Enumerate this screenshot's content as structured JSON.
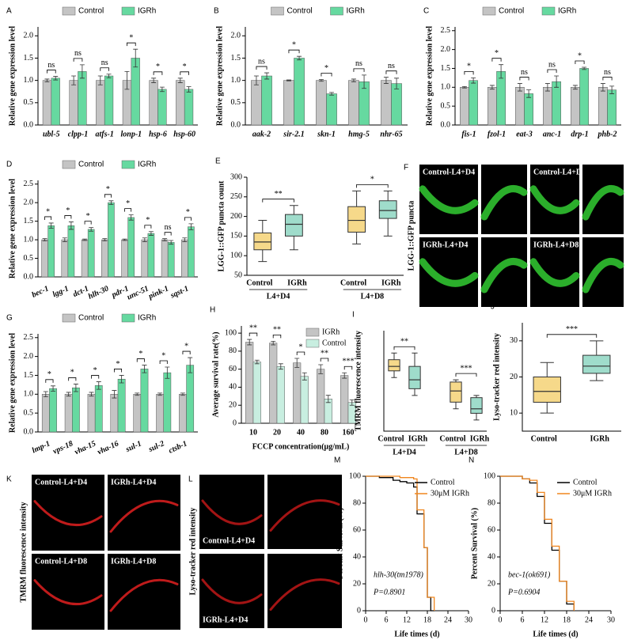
{
  "chart_data": [
    {
      "label": "A",
      "type": "bar",
      "ylabel": "Relative gene expression level",
      "legend": "top",
      "categories": [
        "ubl-5",
        "clpp-1",
        "atfs-1",
        "lonp-1",
        "hsp-6",
        "hsp-60"
      ],
      "series": [
        {
          "name": "Control",
          "color": "#c4c4c4",
          "values": [
            1,
            1,
            1,
            1,
            1,
            1
          ],
          "errors": [
            0.03,
            0.1,
            0.1,
            0.2,
            0.05,
            0.05
          ]
        },
        {
          "name": "IGRh",
          "color": "#66d9a0",
          "values": [
            1.05,
            1.2,
            1.1,
            1.5,
            0.8,
            0.8
          ],
          "errors": [
            0.04,
            0.15,
            0.04,
            0.2,
            0.05,
            0.06
          ]
        }
      ],
      "significance": [
        "ns",
        "ns",
        "ns",
        "*",
        "*",
        "*"
      ],
      "ylim": [
        0,
        2.2
      ],
      "yticks": [
        {
          "value": 0,
          "label": "0.0"
        },
        0.5,
        {
          "value": 1,
          "label": "1.0"
        },
        1.5,
        {
          "value": 2,
          "label": "2.0"
        }
      ]
    },
    {
      "label": "B",
      "type": "bar",
      "ylabel": "Relative gene expression level",
      "legend": "top",
      "categories": [
        "aak-2",
        "sir-2.1",
        "skn-1",
        "hmg-5",
        "nhr-65"
      ],
      "series": [
        {
          "name": "Control",
          "color": "#c4c4c4",
          "values": [
            1,
            1,
            1,
            1,
            1
          ],
          "errors": [
            0.1,
            0.01,
            0.02,
            0.03,
            0.07
          ]
        },
        {
          "name": "IGRh",
          "color": "#66d9a0",
          "values": [
            1.1,
            1.5,
            0.7,
            0.97,
            0.93
          ],
          "errors": [
            0.07,
            0.04,
            0.03,
            0.15,
            0.12
          ]
        }
      ],
      "significance": [
        "ns",
        "*",
        "*",
        "ns",
        "ns"
      ],
      "ylim": [
        0,
        2.2
      ],
      "yticks": [
        {
          "value": 0,
          "label": "0.0"
        },
        0.5,
        {
          "value": 1,
          "label": "1.0"
        },
        1.5,
        {
          "value": 2,
          "label": "2.0"
        }
      ]
    },
    {
      "label": "C",
      "type": "bar",
      "ylabel": "Relative gene expression level",
      "legend": "top",
      "categories": [
        "fis-1",
        "fzol-1",
        "eat-3",
        "anc-1",
        "drp-1",
        "phb-2"
      ],
      "series": [
        {
          "name": "Control",
          "color": "#c4c4c4",
          "values": [
            1,
            1,
            1,
            1,
            1,
            1
          ],
          "errors": [
            0.02,
            0.05,
            0.1,
            0.1,
            0.05,
            0.1
          ]
        },
        {
          "name": "IGRh",
          "color": "#66d9a0",
          "values": [
            1.18,
            1.42,
            0.83,
            1.15,
            1.5,
            0.93
          ],
          "errors": [
            0.07,
            0.18,
            0.1,
            0.15,
            0.03,
            0.1
          ]
        }
      ],
      "significance": [
        "*",
        "*",
        "ns",
        "ns",
        "*",
        "ns"
      ],
      "ylim": [
        0,
        2.6
      ],
      "yticks": [
        {
          "value": 0,
          "label": "0.0"
        },
        0.5,
        {
          "value": 1,
          "label": "1.0"
        },
        1.5,
        {
          "value": 2,
          "label": "2.0"
        },
        2.5
      ]
    },
    {
      "label": "D",
      "type": "bar",
      "ylabel": "Relative gene expression level",
      "legend": "top",
      "categories": [
        "bec-1",
        "lgg-1",
        "dct-1",
        "hlh-30",
        "pdr-1",
        "unc-51",
        "pink-1",
        "sqst-1"
      ],
      "series": [
        {
          "name": "Control",
          "color": "#c4c4c4",
          "values": [
            1,
            1,
            1,
            1,
            1,
            1,
            1,
            1
          ],
          "errors": [
            0.03,
            0.05,
            0.02,
            0.03,
            0.02,
            0.05,
            0.03,
            0.05
          ]
        },
        {
          "name": "IGRh",
          "color": "#66d9a0",
          "values": [
            1.38,
            1.38,
            1.28,
            2.0,
            1.6,
            1.17,
            0.93,
            1.35
          ],
          "errors": [
            0.07,
            0.1,
            0.05,
            0.05,
            0.07,
            0.05,
            0.05,
            0.08
          ]
        }
      ],
      "significance": [
        "*",
        "*",
        "*",
        "*",
        "*",
        "*",
        "ns",
        "*"
      ],
      "ylim": [
        0,
        2.6
      ],
      "yticks": [
        {
          "value": 0,
          "label": "0.0"
        },
        0.5,
        {
          "value": 1,
          "label": "1.0"
        },
        1.5,
        {
          "value": 2,
          "label": "2.0"
        },
        2.5
      ]
    },
    {
      "label": "E",
      "type": "box",
      "ylabel": "LGG-1::GFP puncta count",
      "categories": [
        "Control",
        "IGRh",
        "Control",
        "IGRh"
      ],
      "groups": [
        "L4+D4",
        "L4+D8"
      ],
      "stats": [
        [
          85,
          115,
          135,
          158,
          190
        ],
        [
          115,
          150,
          180,
          205,
          228
        ],
        [
          130,
          160,
          190,
          225,
          265
        ],
        [
          150,
          195,
          215,
          240,
          265
        ]
      ],
      "colors": [
        "#f6d98a",
        "#9fdccb",
        "#f6d98a",
        "#9fdccb"
      ],
      "significance": [
        "**",
        "*"
      ],
      "ylim": [
        50,
        300
      ],
      "yticks": [
        50,
        100,
        150,
        200,
        250,
        300
      ]
    },
    {
      "label": "G",
      "type": "bar",
      "ylabel": "Relative gene expression level",
      "legend": "top",
      "categories": [
        "lmp-1",
        "vps-18",
        "vha-15",
        "vha-16",
        "sul-1",
        "sul-2",
        "ctsb-1"
      ],
      "series": [
        {
          "name": "Control",
          "color": "#c4c4c4",
          "values": [
            1,
            1,
            1,
            1,
            1,
            1,
            1
          ],
          "errors": [
            0.07,
            0.05,
            0.05,
            0.1,
            0.03,
            0.03,
            0.03
          ]
        },
        {
          "name": "IGRh",
          "color": "#66d9a0",
          "values": [
            1.15,
            1.17,
            1.23,
            1.4,
            1.67,
            1.57,
            1.77
          ],
          "errors": [
            0.07,
            0.1,
            0.1,
            0.1,
            0.1,
            0.15,
            0.2
          ]
        }
      ],
      "significance": [
        "*",
        "*",
        "*",
        "*",
        "*",
        "*",
        "*"
      ],
      "ylim": [
        0,
        2.6
      ],
      "yticks": [
        {
          "value": 0,
          "label": "0.0"
        },
        0.5,
        {
          "value": 1,
          "label": "1.0"
        },
        1.5,
        {
          "value": 2,
          "label": "2.0"
        },
        2.5
      ]
    },
    {
      "label": "H",
      "type": "bar",
      "ylabel": "Average survival rate(%)",
      "xlabel": "FCCP concentration(μg/mL)",
      "legend": "upper right",
      "categories": [
        "10",
        "20",
        "40",
        "80",
        "160"
      ],
      "series": [
        {
          "name": "IGRh",
          "color": "#c4c4c4",
          "values": [
            90,
            89,
            67,
            60,
            53
          ],
          "errors": [
            3,
            2,
            5,
            5,
            3
          ]
        },
        {
          "name": "Control",
          "color": "#c8eee0",
          "values": [
            68,
            63,
            52,
            27,
            23
          ],
          "errors": [
            2,
            3,
            4,
            4,
            3
          ]
        }
      ],
      "significance": [
        "**",
        "**",
        "*",
        "**",
        "***"
      ],
      "ylim": [
        0,
        108
      ],
      "yticks": [
        0,
        20,
        40,
        60,
        80,
        100
      ]
    },
    {
      "label": "I",
      "type": "box",
      "ylabel": "TMRM fluorescence intensity",
      "categories": [
        "Control",
        "IGRh",
        "Control",
        "IGRh"
      ],
      "groups": [
        "L4+D4",
        "L4+D8"
      ],
      "stats": [
        [
          29,
          32,
          34,
          37,
          40
        ],
        [
          21,
          24,
          28,
          34,
          40
        ],
        [
          15,
          18,
          23,
          27,
          28
        ],
        [
          10,
          13,
          15,
          20,
          21
        ]
      ],
      "colors": [
        "#f6d98a",
        "#9fdccb",
        "#f6d98a",
        "#9fdccb"
      ],
      "significance": [
        "**",
        "***"
      ],
      "ylim": [
        5,
        50
      ]
    },
    {
      "label": "J",
      "type": "box",
      "ylabel": "Lyso-tracker red  intensity",
      "categories": [
        "Control",
        "IGRh"
      ],
      "stats": [
        [
          10,
          13,
          16,
          20,
          24
        ],
        [
          19,
          21,
          23,
          26,
          30
        ]
      ],
      "colors": [
        "#f6d98a",
        "#9fdccb"
      ],
      "significance": [
        "***"
      ],
      "ylim": [
        5,
        35
      ],
      "yticks": [
        10,
        20,
        30
      ]
    },
    {
      "label": "M",
      "type": "line",
      "drawstyle": "steps-post",
      "ylabel": "Percent  Survival (%)",
      "xlabel": "Life times  (d)",
      "legend": "upper right",
      "x": [
        0,
        4,
        8,
        10,
        12,
        14,
        15,
        16,
        17,
        18,
        19,
        20
      ],
      "series": [
        {
          "name": "Control",
          "color": "#000000",
          "values": [
            100,
            99,
            97,
            96,
            95,
            92,
            72,
            72,
            47,
            10,
            0,
            0
          ]
        },
        {
          "name": "30μM IGRh",
          "color": "#f0861e",
          "values": [
            100,
            100,
            100,
            99,
            99,
            98,
            75,
            75,
            47,
            10,
            10,
            0
          ]
        }
      ],
      "annotations": [
        "hlh-30(tm1978)",
        "P=0.8901"
      ],
      "xlim": [
        0,
        30
      ],
      "xticks": [
        0,
        6,
        12,
        18,
        24,
        30
      ],
      "ylim": [
        0,
        100
      ],
      "yticks": [
        0,
        20,
        40,
        60,
        80,
        100
      ]
    },
    {
      "label": "N",
      "type": "line",
      "drawstyle": "steps-post",
      "ylabel": "Percent  Survival (%)",
      "xlabel": "Life times  (d)",
      "legend": "upper right",
      "x": [
        0,
        4,
        6,
        8,
        10,
        12,
        14,
        16,
        18,
        20
      ],
      "series": [
        {
          "name": "Control",
          "color": "#000000",
          "values": [
            100,
            100,
            98,
            95,
            85,
            65,
            45,
            22,
            5,
            0
          ]
        },
        {
          "name": "30μM IGRh",
          "color": "#f0861e",
          "values": [
            100,
            100,
            98,
            97,
            88,
            68,
            48,
            22,
            7,
            0
          ]
        }
      ],
      "annotations": [
        "bec-1(ok691)",
        "P=0.6904"
      ],
      "xlim": [
        0,
        30
      ],
      "xticks": [
        0,
        6,
        12,
        18,
        24,
        30
      ],
      "ylim": [
        0,
        100
      ],
      "yticks": [
        0,
        20,
        40,
        60,
        80,
        100
      ]
    }
  ],
  "image_panels": [
    {
      "label": "F",
      "caption": "LGG-1::GFP puncta",
      "tiles": [
        "Control-L4+D4",
        "Control-L4+D",
        "IGRh-L4+D4",
        "IGRh-L4+D8"
      ]
    },
    {
      "label": "K",
      "caption": "TMRM fluorescence intensity",
      "tiles": [
        "Control-L4+D4",
        "IGRh-L4+D4",
        "Control-L4+D8",
        "IGRh-L4+D8"
      ]
    },
    {
      "label": "L",
      "caption": "Lyso-tracker red  intensity",
      "tiles": [
        "Control-L4+D4",
        "IGRh-L4+D4"
      ]
    }
  ]
}
